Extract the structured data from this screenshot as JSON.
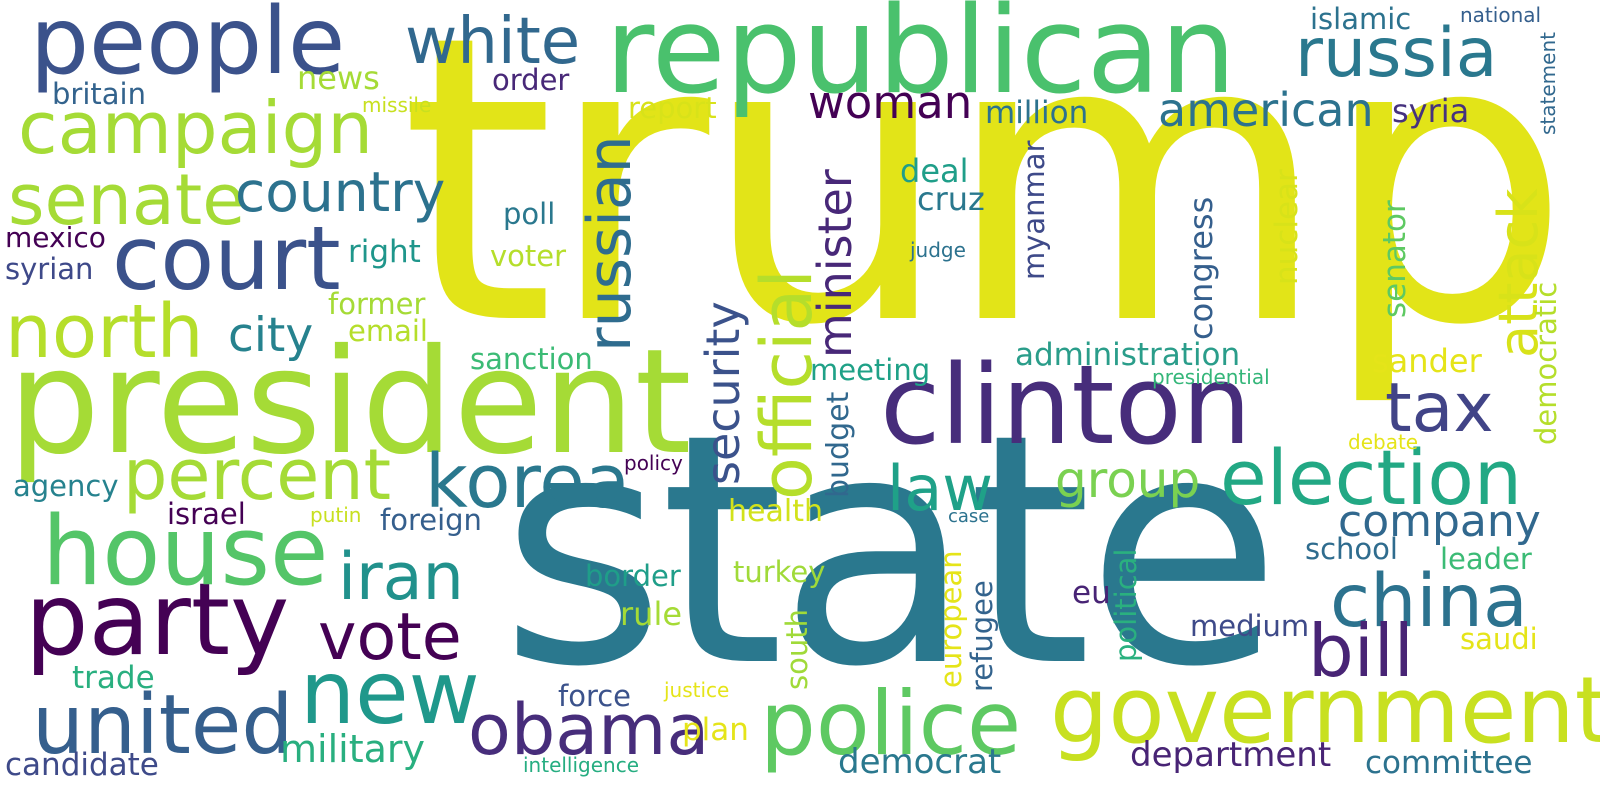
{
  "words": {
    "trump": {
      "text": "trump",
      "color": "#e2e418"
    },
    "state": {
      "text": "state",
      "color": "#2a788e"
    },
    "republican": {
      "text": "republican",
      "color": "#4ac16d"
    },
    "president": {
      "text": "president",
      "color": "#a5db36"
    },
    "people": {
      "text": "people",
      "color": "#3b528b"
    },
    "clinton": {
      "text": "clinton",
      "color": "#472d7b"
    },
    "party": {
      "text": "party",
      "color": "#440154"
    },
    "house": {
      "text": "house",
      "color": "#54c568"
    },
    "court": {
      "text": "court",
      "color": "#3b528b"
    },
    "campaign": {
      "text": "campaign",
      "color": "#a5db36"
    },
    "north": {
      "text": "north",
      "color": "#b5de2b"
    },
    "government": {
      "text": "government",
      "color": "#c8e020"
    },
    "police": {
      "text": "police",
      "color": "#5ec962"
    },
    "russia": {
      "text": "russia",
      "color": "#2a788e"
    },
    "election": {
      "text": "election",
      "color": "#22a884"
    },
    "new": {
      "text": "new",
      "color": "#1f988b"
    },
    "united": {
      "text": "united",
      "color": "#355f8d"
    },
    "obama": {
      "text": "obama",
      "color": "#472d7b"
    },
    "korea": {
      "text": "korea",
      "color": "#2a788e"
    },
    "china": {
      "text": "china",
      "color": "#2c728e"
    },
    "percent": {
      "text": "percent",
      "color": "#a5db36"
    },
    "senate": {
      "text": "senate",
      "color": "#a5db36"
    },
    "white": {
      "text": "white",
      "color": "#31688e"
    },
    "official": {
      "text": "official",
      "color": "#b5de2b"
    },
    "russian": {
      "text": "russian",
      "color": "#2f6c8e"
    },
    "vote": {
      "text": "vote",
      "color": "#440154"
    },
    "iran": {
      "text": "iran",
      "color": "#21918c"
    },
    "bill": {
      "text": "bill",
      "color": "#482475"
    },
    "country": {
      "text": "country",
      "color": "#2c728e"
    },
    "tax": {
      "text": "tax",
      "color": "#414487"
    },
    "law": {
      "text": "law",
      "color": "#1fa188"
    },
    "attack": {
      "text": "attack",
      "color": "#d8e219"
    },
    "american": {
      "text": "american",
      "color": "#2c728e"
    },
    "security": {
      "text": "security",
      "color": "#3b528b"
    },
    "woman": {
      "text": "woman",
      "color": "#440154"
    },
    "company": {
      "text": "company",
      "color": "#31688e"
    },
    "minister": {
      "text": "minister",
      "color": "#482878"
    },
    "group": {
      "text": "group",
      "color": "#7ad151"
    },
    "military": {
      "text": "military",
      "color": "#29af7f"
    },
    "city": {
      "text": "city",
      "color": "#26828e"
    },
    "department": {
      "text": "department",
      "color": "#482475"
    },
    "democrat": {
      "text": "democrat",
      "color": "#2a788e"
    },
    "candidate": {
      "text": "candidate",
      "color": "#3e4a89"
    },
    "committee": {
      "text": "committee",
      "color": "#2c728e"
    },
    "administration": {
      "text": "administration",
      "color": "#2a9d8a"
    },
    "news": {
      "text": "news",
      "color": "#a5db36"
    },
    "million": {
      "text": "million",
      "color": "#2c728e"
    },
    "syria": {
      "text": "syria",
      "color": "#46327e"
    },
    "islamic": {
      "text": "islamic",
      "color": "#2c728e"
    },
    "britain": {
      "text": "britain",
      "color": "#33638d"
    },
    "order": {
      "text": "order",
      "color": "#482878"
    },
    "report": {
      "text": "report",
      "color": "#d8e219"
    },
    "deal": {
      "text": "deal",
      "color": "#1f9e89"
    },
    "cruz": {
      "text": "cruz",
      "color": "#2a788e"
    },
    "poll": {
      "text": "poll",
      "color": "#2a788e"
    },
    "voter": {
      "text": "voter",
      "color": "#b5de2b"
    },
    "right": {
      "text": "right",
      "color": "#1f968b"
    },
    "former": {
      "text": "former",
      "color": "#a5db36"
    },
    "email": {
      "text": "email",
      "color": "#b5de2b"
    },
    "mexico": {
      "text": "mexico",
      "color": "#440154"
    },
    "syrian": {
      "text": "syrian",
      "color": "#3e4989"
    },
    "agency": {
      "text": "agency",
      "color": "#26828e"
    },
    "israel": {
      "text": "israel",
      "color": "#440154"
    },
    "foreign": {
      "text": "foreign",
      "color": "#355f8d"
    },
    "health": {
      "text": "health",
      "color": "#d2e21b"
    },
    "border": {
      "text": "border",
      "color": "#1f9e89"
    },
    "turkey": {
      "text": "turkey",
      "color": "#a0da39"
    },
    "rule": {
      "text": "rule",
      "color": "#a5db36"
    },
    "trade": {
      "text": "trade",
      "color": "#29af7f"
    },
    "force": {
      "text": "force",
      "color": "#3b528b"
    },
    "plan": {
      "text": "plan",
      "color": "#e5e419"
    },
    "sanction": {
      "text": "sanction",
      "color": "#3bbb75"
    },
    "meeting": {
      "text": "meeting",
      "color": "#1fa187"
    },
    "sander": {
      "text": "sander",
      "color": "#e5e419"
    },
    "school": {
      "text": "school",
      "color": "#2f6c8e"
    },
    "leader": {
      "text": "leader",
      "color": "#3bbb75"
    },
    "medium": {
      "text": "medium",
      "color": "#3e4a89"
    },
    "saudi": {
      "text": "saudi",
      "color": "#e5e419"
    },
    "eu": {
      "text": "eu",
      "color": "#482475"
    },
    "nuclear": {
      "text": "nuclear",
      "color": "#d8e219"
    },
    "congress": {
      "text": "congress",
      "color": "#355f8d"
    },
    "myanmar": {
      "text": "myanmar",
      "color": "#3e4a89"
    },
    "senator": {
      "text": "senator",
      "color": "#5ec962"
    },
    "democratic": {
      "text": "democratic",
      "color": "#b5de2b"
    },
    "statement": {
      "text": "statement",
      "color": "#31688e"
    },
    "national": {
      "text": "national",
      "color": "#355f8d"
    },
    "missile": {
      "text": "missile",
      "color": "#c8e020"
    },
    "judge": {
      "text": "judge",
      "color": "#2c728e"
    },
    "presidential": {
      "text": "presidential",
      "color": "#34b679"
    },
    "debate": {
      "text": "debate",
      "color": "#e5e419"
    },
    "policy": {
      "text": "policy",
      "color": "#440154"
    },
    "case": {
      "text": "case",
      "color": "#2c728e"
    },
    "putin": {
      "text": "putin",
      "color": "#c8e020"
    },
    "budget": {
      "text": "budget",
      "color": "#31688e"
    },
    "south": {
      "text": "south",
      "color": "#a0da39"
    },
    "european": {
      "text": "european",
      "color": "#e5e419"
    },
    "refugee": {
      "text": "refugee",
      "color": "#33638d"
    },
    "political": {
      "text": "political",
      "color": "#2ab07f"
    },
    "justice": {
      "text": "justice",
      "color": "#e5e419"
    },
    "intelligence": {
      "text": "intelligence",
      "color": "#26ad81"
    }
  }
}
